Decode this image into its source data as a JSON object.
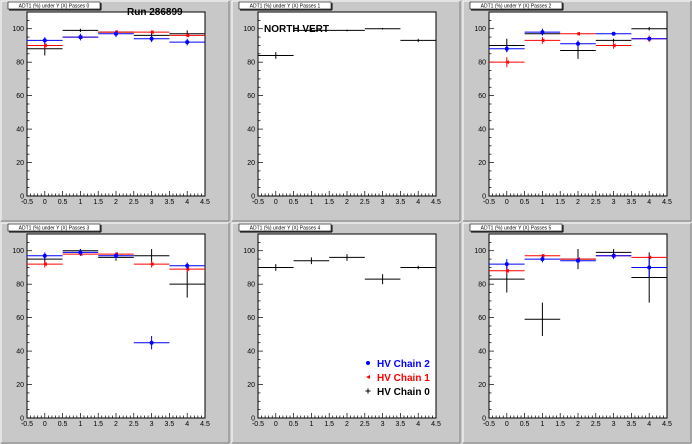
{
  "colors": {
    "pad_bg": "#c8c8c8",
    "frame_bg": "#ffffff",
    "chain0": "#000000",
    "chain1": "#ff0000",
    "chain2": "#0000ff"
  },
  "header": {
    "run_label": "Run 286899"
  },
  "chart_data": [
    {
      "type": "scatter",
      "title": "",
      "titlebox": "ADT1 (%) under Y (X) Passes 0",
      "annotation": "",
      "xlim": [
        -0.5,
        4.5
      ],
      "ylim": [
        0,
        110
      ],
      "xticks": [
        "-0.5",
        "0",
        "0.5",
        "1",
        "1.5",
        "2",
        "2.5",
        "3",
        "3.5",
        "4",
        "4.5"
      ],
      "yticks": [
        "0",
        "20",
        "40",
        "60",
        "80",
        "100"
      ],
      "series": [
        {
          "chain": "chain0",
          "points": [
            {
              "x": 0,
              "y": 88,
              "ey": 4
            },
            {
              "x": 1,
              "y": 99,
              "ey": 1
            },
            {
              "x": 2,
              "y": 98,
              "ey": 1
            },
            {
              "x": 3,
              "y": 96,
              "ey": 2
            },
            {
              "x": 4,
              "y": 97,
              "ey": 2
            }
          ]
        },
        {
          "chain": "chain1",
          "points": [
            {
              "x": 0,
              "y": 90,
              "ey": 2
            },
            {
              "x": 1,
              "y": 95,
              "ey": 1
            },
            {
              "x": 2,
              "y": 98,
              "ey": 1
            },
            {
              "x": 3,
              "y": 98,
              "ey": 1
            },
            {
              "x": 4,
              "y": 96,
              "ey": 1
            }
          ]
        },
        {
          "chain": "chain2",
          "points": [
            {
              "x": 0,
              "y": 93,
              "ey": 2
            },
            {
              "x": 1,
              "y": 95,
              "ey": 2
            },
            {
              "x": 2,
              "y": 97,
              "ey": 2
            },
            {
              "x": 3,
              "y": 94,
              "ey": 2
            },
            {
              "x": 4,
              "y": 92,
              "ey": 2
            }
          ]
        }
      ]
    },
    {
      "type": "scatter",
      "title": "",
      "titlebox": "ADT1 (%) under Y (X) Passes 1",
      "annotation": "NORTH VERT",
      "xlim": [
        -0.5,
        4.5
      ],
      "ylim": [
        0,
        110
      ],
      "xticks": [
        "-0.5",
        "0",
        "0.5",
        "1",
        "1.5",
        "2",
        "2.5",
        "3",
        "3.5",
        "4",
        "4.5"
      ],
      "yticks": [
        "0",
        "20",
        "40",
        "60",
        "80",
        "100"
      ],
      "series": [
        {
          "chain": "chain0",
          "points": [
            {
              "x": 0,
              "y": 84,
              "ey": 2
            },
            {
              "x": 1,
              "y": 99,
              "ey": 1
            },
            {
              "x": 2,
              "y": 99,
              "ey": 0.5
            },
            {
              "x": 3,
              "y": 100,
              "ey": 0.5
            },
            {
              "x": 4,
              "y": 93,
              "ey": 1
            }
          ]
        }
      ]
    },
    {
      "type": "scatter",
      "title": "",
      "titlebox": "ADT1 (%) under Y (X) Passes 2",
      "annotation": "",
      "xlim": [
        -0.5,
        4.5
      ],
      "ylim": [
        0,
        110
      ],
      "xticks": [
        "-0.5",
        "0",
        "0.5",
        "1",
        "1.5",
        "2",
        "2.5",
        "3",
        "3.5",
        "4",
        "4.5"
      ],
      "yticks": [
        "0",
        "20",
        "40",
        "60",
        "80",
        "100"
      ],
      "series": [
        {
          "chain": "chain0",
          "points": [
            {
              "x": 0,
              "y": 90,
              "ey": 4
            },
            {
              "x": 1,
              "y": 97,
              "ey": 1
            },
            {
              "x": 2,
              "y": 87,
              "ey": 5
            },
            {
              "x": 3,
              "y": 93,
              "ey": 1
            },
            {
              "x": 4,
              "y": 100,
              "ey": 1
            }
          ]
        },
        {
          "chain": "chain1",
          "points": [
            {
              "x": 0,
              "y": 80,
              "ey": 3
            },
            {
              "x": 1,
              "y": 93,
              "ey": 2
            },
            {
              "x": 2,
              "y": 97,
              "ey": 1
            },
            {
              "x": 3,
              "y": 90,
              "ey": 2
            },
            {
              "x": 4,
              "y": 94,
              "ey": 2
            }
          ]
        },
        {
          "chain": "chain2",
          "points": [
            {
              "x": 0,
              "y": 88,
              "ey": 2
            },
            {
              "x": 1,
              "y": 98,
              "ey": 2
            },
            {
              "x": 2,
              "y": 91,
              "ey": 2
            },
            {
              "x": 3,
              "y": 97,
              "ey": 1
            },
            {
              "x": 4,
              "y": 94,
              "ey": 1
            }
          ]
        }
      ]
    },
    {
      "type": "scatter",
      "title": "",
      "titlebox": "ADT1 (%) under Y (X) Passes 3",
      "annotation": "",
      "xlim": [
        -0.5,
        4.5
      ],
      "ylim": [
        0,
        110
      ],
      "xticks": [
        "-0.5",
        "0",
        "0.5",
        "1",
        "1.5",
        "2",
        "2.5",
        "3",
        "3.5",
        "4",
        "4.5"
      ],
      "yticks": [
        "0",
        "20",
        "40",
        "60",
        "80",
        "100"
      ],
      "series": [
        {
          "chain": "chain0",
          "points": [
            {
              "x": 0,
              "y": 95,
              "ey": 3
            },
            {
              "x": 1,
              "y": 100,
              "ey": 1
            },
            {
              "x": 2,
              "y": 96,
              "ey": 2
            },
            {
              "x": 3,
              "y": 97,
              "ey": 4
            },
            {
              "x": 4,
              "y": 80,
              "ey": 8
            }
          ]
        },
        {
          "chain": "chain1",
          "points": [
            {
              "x": 0,
              "y": 92,
              "ey": 2
            },
            {
              "x": 1,
              "y": 98,
              "ey": 1
            },
            {
              "x": 2,
              "y": 98,
              "ey": 1
            },
            {
              "x": 3,
              "y": 92,
              "ey": 2
            },
            {
              "x": 4,
              "y": 89,
              "ey": 2
            }
          ]
        },
        {
          "chain": "chain2",
          "points": [
            {
              "x": 0,
              "y": 97,
              "ey": 2
            },
            {
              "x": 1,
              "y": 99,
              "ey": 2
            },
            {
              "x": 2,
              "y": 97,
              "ey": 2
            },
            {
              "x": 3,
              "y": 45,
              "ey": 4
            },
            {
              "x": 4,
              "y": 91,
              "ey": 2
            }
          ]
        }
      ]
    },
    {
      "type": "scatter",
      "title": "",
      "titlebox": "ADT1 (%) under Y (X) Passes 4",
      "annotation": "",
      "xlim": [
        -0.5,
        4.5
      ],
      "ylim": [
        0,
        110
      ],
      "xticks": [
        "-0.5",
        "0",
        "0.5",
        "1",
        "1.5",
        "2",
        "2.5",
        "3",
        "3.5",
        "4",
        "4.5"
      ],
      "yticks": [
        "0",
        "20",
        "40",
        "60",
        "80",
        "100"
      ],
      "legend": {
        "placement": "bottom-right",
        "entries": [
          {
            "label": "HV Chain 2",
            "chain": "chain2"
          },
          {
            "label": "HV Chain 1",
            "chain": "chain1"
          },
          {
            "label": "HV Chain 0",
            "chain": "chain0"
          }
        ]
      },
      "series": [
        {
          "chain": "chain0",
          "points": [
            {
              "x": 0,
              "y": 90,
              "ey": 2
            },
            {
              "x": 1,
              "y": 94,
              "ey": 2
            },
            {
              "x": 2,
              "y": 96,
              "ey": 2
            },
            {
              "x": 3,
              "y": 83,
              "ey": 3
            },
            {
              "x": 4,
              "y": 90,
              "ey": 1
            }
          ]
        }
      ]
    },
    {
      "type": "scatter",
      "title": "",
      "titlebox": "ADT1 (%) under Y (X) Passes 5",
      "annotation": "",
      "xlim": [
        -0.5,
        4.5
      ],
      "ylim": [
        0,
        110
      ],
      "xticks": [
        "-0.5",
        "0",
        "0.5",
        "1",
        "1.5",
        "2",
        "2.5",
        "3",
        "3.5",
        "4",
        "4.5"
      ],
      "yticks": [
        "0",
        "20",
        "40",
        "60",
        "80",
        "100"
      ],
      "series": [
        {
          "chain": "chain0",
          "points": [
            {
              "x": 0,
              "y": 83,
              "ey": 8
            },
            {
              "x": 1,
              "y": 59,
              "ey": 10
            },
            {
              "x": 2,
              "y": 95,
              "ey": 6
            },
            {
              "x": 3,
              "y": 99,
              "ey": 2
            },
            {
              "x": 4,
              "y": 84,
              "ey": 15
            }
          ]
        },
        {
          "chain": "chain1",
          "points": [
            {
              "x": 0,
              "y": 88,
              "ey": 2
            },
            {
              "x": 1,
              "y": 97,
              "ey": 1
            },
            {
              "x": 2,
              "y": 95,
              "ey": 1
            },
            {
              "x": 3,
              "y": 97,
              "ey": 1
            },
            {
              "x": 4,
              "y": 96,
              "ey": 1
            }
          ]
        },
        {
          "chain": "chain2",
          "points": [
            {
              "x": 0,
              "y": 92,
              "ey": 3
            },
            {
              "x": 1,
              "y": 95,
              "ey": 2
            },
            {
              "x": 2,
              "y": 94,
              "ey": 2
            },
            {
              "x": 3,
              "y": 97,
              "ey": 2
            },
            {
              "x": 4,
              "y": 90,
              "ey": 6
            }
          ]
        }
      ]
    }
  ]
}
